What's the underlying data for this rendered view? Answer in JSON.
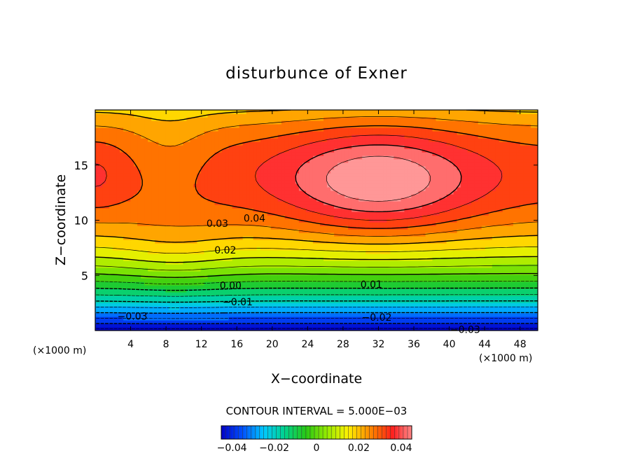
{
  "chart_data": {
    "type": "contour",
    "title": "disturbunce of Exner",
    "xlabel": "X−coordinate",
    "ylabel": "Z−coordinate",
    "x_unit_left": "(×1000 m)",
    "x_unit_right": "(×1000 m)",
    "xlim": [
      0,
      50
    ],
    "ylim": [
      0,
      20
    ],
    "x_ticks": [
      4,
      8,
      12,
      16,
      20,
      24,
      28,
      32,
      36,
      40,
      44,
      48
    ],
    "x_tick_labels": [
      "4",
      "8",
      "12",
      "16",
      "20",
      "24",
      "28",
      "32",
      "36",
      "40",
      "44",
      "48"
    ],
    "y_ticks": [
      5,
      10,
      15
    ],
    "y_tick_labels": [
      "5",
      "10",
      "15"
    ],
    "contour_interval_text": "CONTOUR INTERVAL = 5.000E−03",
    "value_range": [
      -0.045,
      0.045
    ],
    "contour_step": 0.005,
    "contour_labels": [
      {
        "text": "0.04",
        "x": 18,
        "y": 10.2
      },
      {
        "text": "0.03",
        "x": 13.8,
        "y": 9.7
      },
      {
        "text": "0.02",
        "x": 14.7,
        "y": 7.3
      },
      {
        "text": "0.00",
        "x": 15.3,
        "y": 4.1
      },
      {
        "text": "0.01",
        "x": 31.2,
        "y": 4.2
      },
      {
        "text": "−0.01",
        "x": 16.1,
        "y": 2.6
      },
      {
        "text": "−0.02",
        "x": 31.8,
        "y": 1.2
      },
      {
        "text": "−0.03",
        "x": 4.2,
        "y": 1.3
      },
      {
        "text": "−0.03",
        "x": 41.8,
        "y": 0.1
      }
    ],
    "colorbar": {
      "ticks": [
        -0.04,
        -0.02,
        0,
        0.02,
        0.04
      ],
      "tick_labels": [
        "−0.04",
        "−0.02",
        "0",
        "0.02",
        "0.04"
      ]
    }
  }
}
